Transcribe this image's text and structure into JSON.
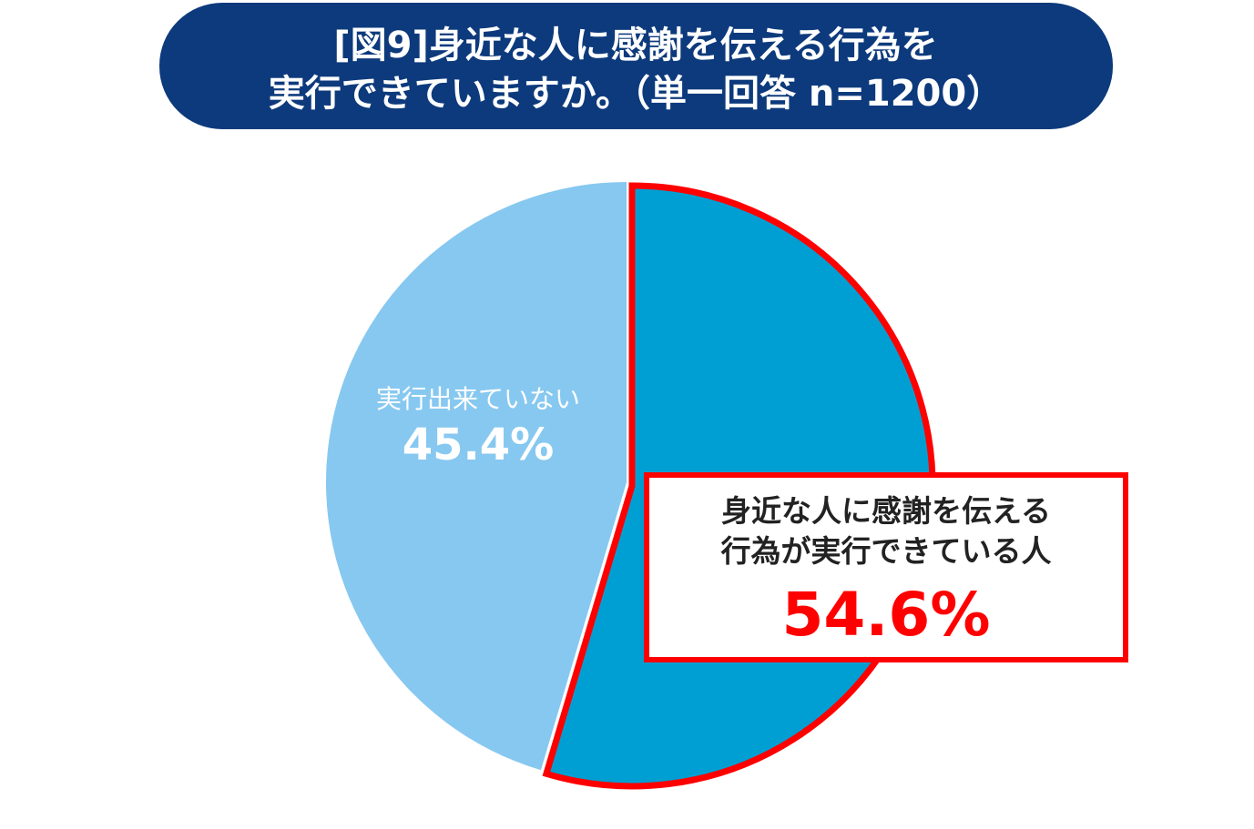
{
  "chart_data": {
    "type": "pie",
    "title": [
      "[図9]身近な人に感謝を伝える行為を",
      "実行できていますか。（単一回答 n=1200）"
    ],
    "categories": [
      "身近な人に感謝を伝える行為が実行できている人",
      "実行出来ていない"
    ],
    "values": [
      54.6,
      45.4
    ],
    "value_labels": [
      "54.6%",
      "45.4%"
    ],
    "colors": [
      "#009fd3",
      "#87c8f0"
    ],
    "highlight_color": "#ff0000",
    "title_color": "#0d3a7c"
  }
}
